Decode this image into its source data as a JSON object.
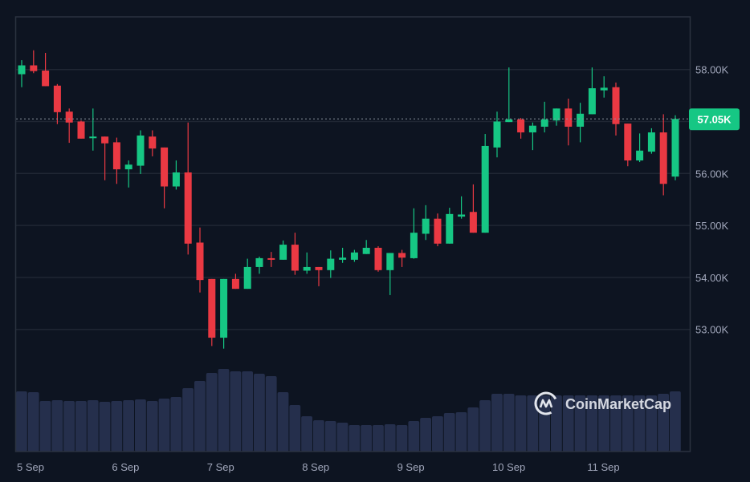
{
  "chart_data": {
    "type": "candlestick",
    "title": "",
    "interval_note": "",
    "x_tick_labels": [
      {
        "label": "5 Sep",
        "index": 0
      },
      {
        "label": "6 Sep",
        "index": 8
      },
      {
        "label": "7 Sep",
        "index": 16
      },
      {
        "label": "8 Sep",
        "index": 24
      },
      {
        "label": "9 Sep",
        "index": 32
      },
      {
        "label": "10 Sep",
        "index": 40
      },
      {
        "label": "11 Sep",
        "index": 48
      }
    ],
    "y_ticks": [
      {
        "value": 58000,
        "label": "58.00K"
      },
      {
        "value": 57000,
        "label": ""
      },
      {
        "value": 56000,
        "label": "56.00K"
      },
      {
        "value": 55000,
        "label": "55.00K"
      },
      {
        "value": 54000,
        "label": "54.00K"
      },
      {
        "value": 53000,
        "label": "53.00K"
      }
    ],
    "ylim": [
      52000,
      58700
    ],
    "grid": true,
    "current_price": {
      "value": 57050,
      "label": "57.05K"
    },
    "colors": {
      "up": "#16c784",
      "down": "#ea3943",
      "volume": "#252f4c",
      "grid": "#1f2633",
      "border": "#2b3240",
      "badge": "#16c784",
      "background": "#0d1421"
    },
    "ohlc": [
      [
        57910,
        58080,
        58180,
        57660
      ],
      [
        58080,
        57970,
        58370,
        57930
      ],
      [
        57980,
        57680,
        58320,
        57680
      ],
      [
        57690,
        57180,
        57720,
        56950
      ],
      [
        57190,
        56980,
        57250,
        56590
      ],
      [
        57000,
        56670,
        57020,
        56670
      ],
      [
        56680,
        56710,
        57250,
        56440
      ],
      [
        56710,
        56580,
        56710,
        55870
      ],
      [
        56600,
        56080,
        56690,
        55800
      ],
      [
        56080,
        56170,
        56250,
        55730
      ],
      [
        56150,
        56730,
        56830,
        55990
      ],
      [
        56710,
        56480,
        56830,
        56330
      ],
      [
        56500,
        55750,
        56500,
        55330
      ],
      [
        55750,
        56020,
        56250,
        55690
      ],
      [
        56020,
        54650,
        56980,
        54440
      ],
      [
        54670,
        53950,
        54960,
        53710
      ],
      [
        53970,
        52840,
        53970,
        52680
      ],
      [
        52840,
        53970,
        53970,
        52630
      ],
      [
        53970,
        53780,
        54070,
        53780
      ],
      [
        53780,
        54200,
        54360,
        53780
      ],
      [
        54200,
        54370,
        54400,
        54070
      ],
      [
        54370,
        54350,
        54490,
        54200
      ],
      [
        54340,
        54630,
        54710,
        54340
      ],
      [
        54630,
        54130,
        54860,
        54050
      ],
      [
        54130,
        54200,
        54480,
        54070
      ],
      [
        54200,
        54140,
        54200,
        53830
      ],
      [
        54140,
        54360,
        54520,
        53990
      ],
      [
        54340,
        54380,
        54570,
        54280
      ],
      [
        54340,
        54480,
        54530,
        54300
      ],
      [
        54450,
        54570,
        54720,
        54450
      ],
      [
        54570,
        54140,
        54600,
        54110
      ],
      [
        54140,
        54470,
        54470,
        53660
      ],
      [
        54470,
        54380,
        54530,
        54200
      ],
      [
        54370,
        54860,
        55330,
        54360
      ],
      [
        54840,
        55130,
        55390,
        54720
      ],
      [
        55130,
        54650,
        55230,
        54600
      ],
      [
        54650,
        55220,
        55340,
        54650
      ],
      [
        55170,
        55210,
        55560,
        55130
      ],
      [
        55260,
        54860,
        55790,
        54860
      ],
      [
        54860,
        56530,
        56760,
        54860
      ],
      [
        56500,
        57000,
        57190,
        56310
      ],
      [
        56990,
        57040,
        58040,
        56990
      ],
      [
        57040,
        56790,
        57070,
        56670
      ],
      [
        56790,
        56920,
        56980,
        56450
      ],
      [
        56900,
        57040,
        57380,
        56790
      ],
      [
        57020,
        57250,
        57250,
        56920
      ],
      [
        57250,
        56900,
        57440,
        56540
      ],
      [
        56900,
        57150,
        57360,
        56600
      ],
      [
        57140,
        57640,
        58040,
        57140
      ],
      [
        57600,
        57650,
        57870,
        57460
      ],
      [
        57660,
        56950,
        57750,
        56730
      ],
      [
        56960,
        56250,
        56960,
        56140
      ],
      [
        56250,
        56440,
        56770,
        56220
      ],
      [
        56420,
        56790,
        56870,
        56380
      ],
      [
        56790,
        55800,
        57140,
        55580
      ],
      [
        55940,
        57050,
        57120,
        55870
      ]
    ],
    "ohlc_fields": [
      "open",
      "close",
      "high",
      "low"
    ],
    "volume_relative": [
      75,
      74,
      63,
      64,
      63,
      63,
      64,
      62,
      63,
      64,
      65,
      63,
      66,
      68,
      79,
      88,
      98,
      103,
      100,
      100,
      97,
      94,
      74,
      58,
      44,
      39,
      38,
      36,
      33,
      33,
      33,
      34,
      33,
      38,
      42,
      44,
      48,
      49,
      55,
      64,
      72,
      72,
      70,
      70,
      70,
      70,
      70,
      70,
      70,
      70,
      70,
      70,
      70,
      70,
      72,
      75
    ]
  },
  "watermark": {
    "text": "CoinMarketCap"
  }
}
